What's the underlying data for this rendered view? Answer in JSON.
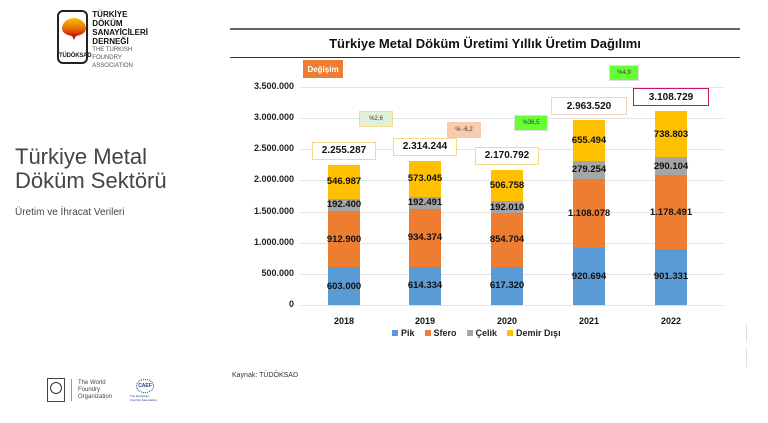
{
  "logo": {
    "abbr": "TÜDÖKSAD",
    "line1": "TÜRKİYE DÖKÜM",
    "line2": "SANAYİCİLERİ",
    "line3": "DERNEĞİ",
    "line4": "THE TURKISH FOUNDRY",
    "line5": "ASSOCIATION"
  },
  "sidebar": {
    "title_line1": "Türkiye Metal",
    "title_line2": "Döküm Sektörü",
    "subtitle": "Üretim ve İhracat Verileri"
  },
  "change_label": "Değişim",
  "source": "Kaynak: TÜDÖKSAD",
  "footer_logos": {
    "wfo_line1": "The World",
    "wfo_line2": "Foundry",
    "wfo_line3": "Organization",
    "caef_name": "CAEF",
    "caef_sub": "The European Foundry Association"
  },
  "colors": {
    "pik": "#5b9bd5",
    "sfero": "#ed7d31",
    "celik": "#a5a5a5",
    "demir_disi": "#ffc000"
  },
  "chart_data": {
    "type": "bar",
    "stacked": true,
    "title": "Türkiye Metal Döküm Üretimi Yıllık Üretim Dağılımı",
    "xlabel": "",
    "ylabel": "",
    "ylim": [
      0,
      3500000
    ],
    "yticks": [
      "0",
      "500.000",
      "1.000.000",
      "1.500.000",
      "2.000.000",
      "2.500.000",
      "3.000.000",
      "3.500.000"
    ],
    "categories": [
      "2018",
      "2019",
      "2020",
      "2021",
      "2022"
    ],
    "series": [
      {
        "name": "Pik",
        "values": [
          603000,
          614334,
          617320,
          920694,
          901331
        ],
        "labels": [
          "603.000",
          "614.334",
          "617.320",
          "920.694",
          "901.331"
        ]
      },
      {
        "name": "Sfero",
        "values": [
          912900,
          934374,
          854704,
          1108078,
          1178491
        ],
        "labels": [
          "912.900",
          "934.374",
          "854.704",
          "1.108.078",
          "1.178.491"
        ]
      },
      {
        "name": "Çelik",
        "values": [
          192400,
          192491,
          192010,
          279254,
          290104
        ],
        "labels": [
          "192.400",
          "192.491",
          "192.010",
          "279.254",
          "290.104"
        ]
      },
      {
        "name": "Demir Dışı",
        "values": [
          546987,
          573045,
          506758,
          655494,
          738803
        ],
        "labels": [
          "546.987",
          "573.045",
          "506.758",
          "655.494",
          "738.803"
        ]
      }
    ],
    "totals": [
      2255287,
      2314244,
      2170792,
      2963520,
      3108729
    ],
    "total_labels": [
      "2.255.287",
      "2.314.244",
      "2.170.792",
      "2.963.520",
      "3.108.729"
    ],
    "changes": [
      "%2,6",
      "% -6,2",
      "%36,5",
      "%4,9"
    ],
    "legend": [
      "Pik",
      "Sfero",
      "Çelik",
      "Demir Dışı"
    ],
    "legend_position": "bottom",
    "grid": true
  }
}
